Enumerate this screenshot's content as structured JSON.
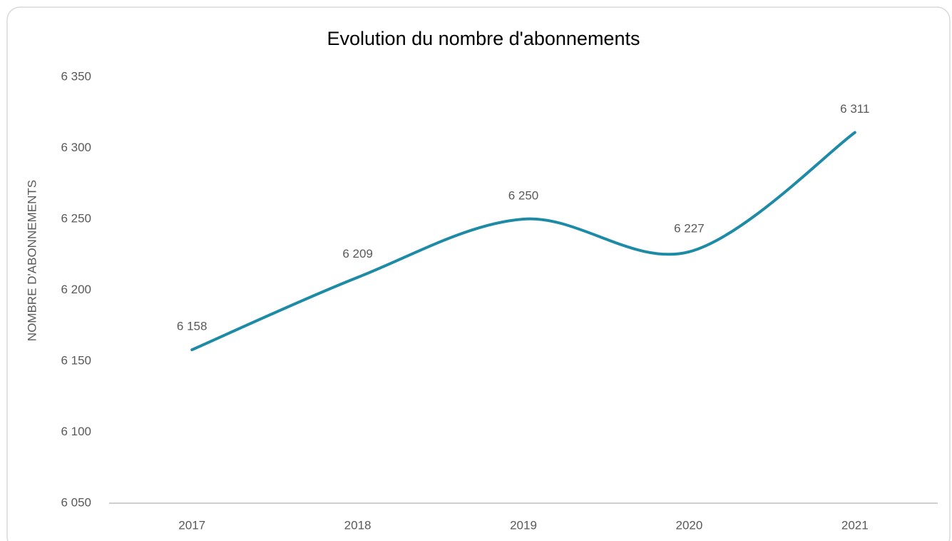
{
  "chart_data": {
    "type": "line",
    "title": "Evolution du nombre d'abonnements",
    "y_label": "NOMBRE D'ABONNEMENTS",
    "categories": [
      "2017",
      "2018",
      "2019",
      "2020",
      "2021"
    ],
    "values": [
      6158,
      6209,
      6250,
      6227,
      6311
    ],
    "value_labels": [
      "6 158",
      "6 209",
      "6 250",
      "6 227",
      "6 311"
    ],
    "color": "#1e8ba6",
    "smooth": true,
    "grid": false,
    "ylim": [
      6050,
      6350
    ],
    "yticks": [
      {
        "value": 6050,
        "label": "6 050"
      },
      {
        "value": 6100,
        "label": "6 100"
      },
      {
        "value": 6150,
        "label": "6 150"
      },
      {
        "value": 6200,
        "label": "6 200"
      },
      {
        "value": 6250,
        "label": "6 250"
      },
      {
        "value": 6300,
        "label": "6 300"
      },
      {
        "value": 6350,
        "label": "6 350"
      }
    ]
  }
}
